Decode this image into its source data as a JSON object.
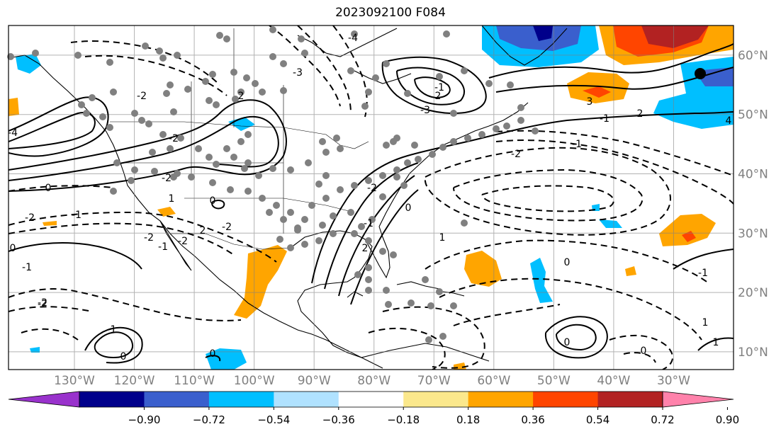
{
  "title": "2023092100 F084",
  "map": {
    "projection": "PlateCarree",
    "lon_range": [
      -141,
      -20
    ],
    "lat_range": [
      7,
      65
    ],
    "lon_labels": [
      "130°W",
      "120°W",
      "110°W",
      "100°W",
      "90°W",
      "80°W",
      "70°W",
      "60°W",
      "50°W",
      "40°W",
      "30°W"
    ],
    "lat_labels": [
      "60°N",
      "50°N",
      "40°N",
      "30°N",
      "20°N",
      "10°N"
    ],
    "contour_labels": [
      "-2",
      "-1",
      "0",
      "-2",
      "-2",
      "2",
      "-2",
      "-3",
      "-1",
      "-2",
      "-2",
      "-1",
      "0",
      "-2",
      "1",
      "0",
      "0",
      "2",
      "-2",
      "-1",
      "2",
      "1",
      "-1",
      "0",
      "0",
      "-1",
      "-3",
      "2",
      "2",
      "-2",
      "3",
      "-1",
      "-2",
      "1",
      "0",
      "0",
      "1",
      "-4",
      "-4",
      "4",
      "-1",
      "0",
      "-2",
      "1"
    ],
    "colors": {
      "grid": "#808080",
      "coast": "#000000",
      "station": "#808080"
    }
  },
  "colorbar": {
    "ticks": [
      "−0.90",
      "−0.72",
      "−0.54",
      "−0.36",
      "−0.18",
      "0.18",
      "0.36",
      "0.54",
      "0.72",
      "0.90"
    ],
    "colors": [
      "#9932cc",
      "#00008b",
      "#3a5fcd",
      "#00bfff",
      "#b0e2ff",
      "#ffffff",
      "#fbe88c",
      "#ffa500",
      "#ff4500",
      "#b22222",
      "#ff82ab"
    ]
  }
}
